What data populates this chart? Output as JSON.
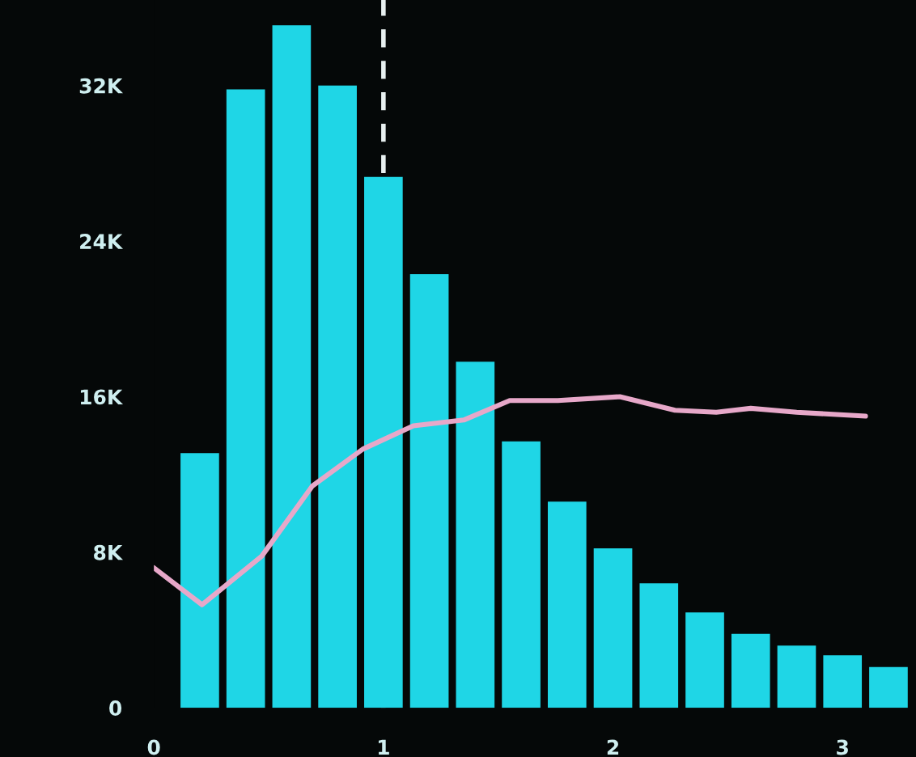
{
  "chart_data": {
    "type": "histogram",
    "bins": [
      0.1,
      0.3,
      0.5,
      0.7,
      0.9,
      1.1,
      1.3,
      1.5,
      1.7,
      1.9,
      2.1,
      2.3,
      2.5,
      2.7,
      2.9,
      3.1,
      3.3
    ],
    "values": [
      13100,
      31800,
      35100,
      32000,
      27300,
      22300,
      17800,
      13700,
      10600,
      8200,
      6400,
      4900,
      3800,
      3200,
      2700,
      2100
    ],
    "color": "#1fd6e6",
    "series": [
      {
        "type": "line",
        "color": "#e7a8c9",
        "x": [
          0.0,
          0.21,
          0.47,
          0.69,
          0.91,
          1.13,
          1.35,
          1.55,
          1.76,
          2.03,
          2.27,
          2.45,
          2.6,
          2.8,
          3.1
        ],
        "values": [
          7200,
          5300,
          7800,
          11400,
          13300,
          14500,
          14800,
          15800,
          15800,
          16000,
          15300,
          15200,
          15400,
          15200,
          15000
        ]
      }
    ],
    "ref_lines": [
      {
        "axis": "x",
        "value": 1,
        "color": "#e8f0f0",
        "line_style": "dashed"
      }
    ],
    "xlim": [
      0,
      3.32
    ],
    "xticks": [
      0,
      1,
      2,
      3
    ],
    "ylim": [
      0,
      36400
    ],
    "yticks": [
      {
        "value": 0,
        "label": "0"
      },
      {
        "value": 8000,
        "label": "8K"
      },
      {
        "value": 16000,
        "label": "16K"
      },
      {
        "value": 24000,
        "label": "24K"
      },
      {
        "value": 32000,
        "label": "32K"
      }
    ],
    "grid": false
  }
}
